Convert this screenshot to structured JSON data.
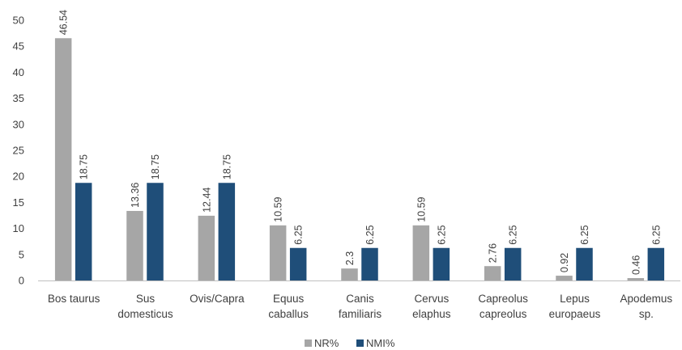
{
  "chart_data": {
    "type": "bar",
    "categories": [
      [
        "Bos taurus"
      ],
      [
        "Sus",
        "domesticus"
      ],
      [
        "Ovis/Capra"
      ],
      [
        "Equus",
        "caballus"
      ],
      [
        "Canis",
        "familiaris"
      ],
      [
        "Cervus",
        "elaphus"
      ],
      [
        "Capreolus",
        "capreolus"
      ],
      [
        "Lepus",
        "europaeus"
      ],
      [
        "Apodemus",
        "sp."
      ]
    ],
    "series": [
      {
        "name": "NR%",
        "color": "#a6a6a6",
        "values": [
          46.54,
          13.36,
          12.44,
          10.59,
          2.3,
          10.59,
          2.76,
          0.92,
          0.46
        ],
        "labels": [
          "46.54",
          "13.36",
          "12.44",
          "10.59",
          "2.3",
          "10.59",
          "2.76",
          "0.92",
          "0.46"
        ]
      },
      {
        "name": "NMI%",
        "color": "#1f4e79",
        "values": [
          18.75,
          18.75,
          18.75,
          6.25,
          6.25,
          6.25,
          6.25,
          6.25,
          6.25
        ],
        "labels": [
          "18.75",
          "18.75",
          "18.75",
          "6.25",
          "6.25",
          "6.25",
          "6.25",
          "6.25",
          "6.25"
        ]
      }
    ],
    "ylim": [
      0,
      50
    ],
    "yticks": [
      "0",
      "5",
      "10",
      "15",
      "20",
      "25",
      "30",
      "35",
      "40",
      "45",
      "50"
    ],
    "grid": false,
    "legend_position": "bottom-center",
    "axis_color": "#bfbfbf"
  }
}
